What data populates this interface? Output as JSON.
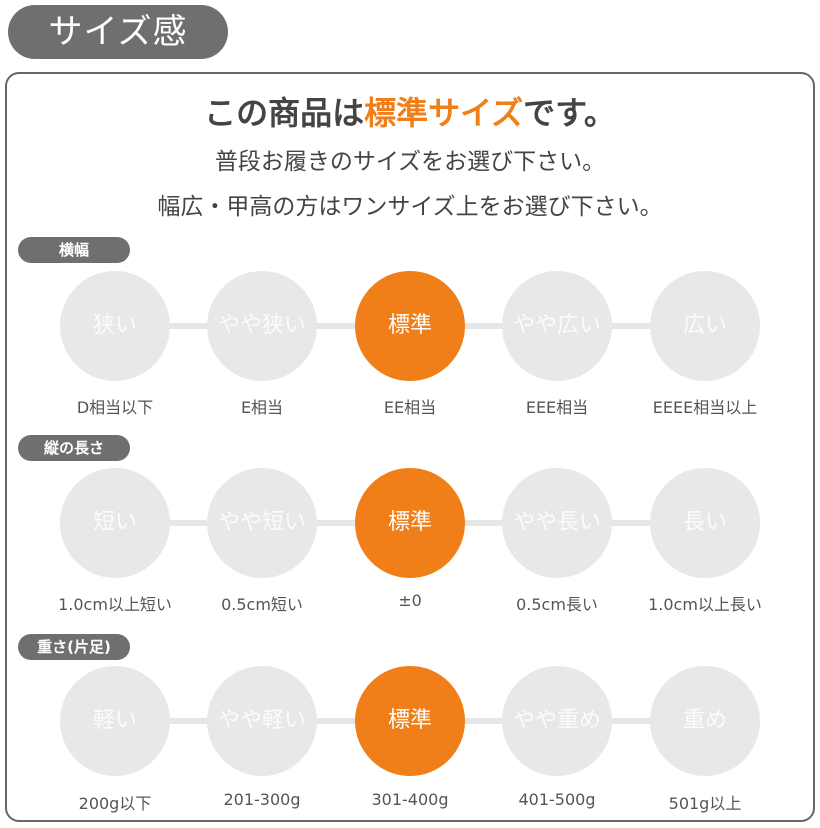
{
  "title": "サイズ感",
  "headline": {
    "prefix": "この商品は",
    "accent": "標準サイズ",
    "suffix": "です。"
  },
  "line2": "普段お履きのサイズをお選び下さい。",
  "line3": "幅広・甲高の方はワンサイズ上をお選び下さい。",
  "colors": {
    "accent": "#f07f1a",
    "inactive": "#e8e8e8",
    "label_bg": "#6f6f6f"
  },
  "sections": [
    {
      "label": "横幅",
      "selected_index": 2,
      "options": [
        "狭い",
        "やや狭い",
        "標準",
        "やや広い",
        "広い"
      ],
      "captions": [
        "D相当以下",
        "E相当",
        "EE相当",
        "EEE相当",
        "EEEE相当以上"
      ]
    },
    {
      "label": "縦の長さ",
      "selected_index": 2,
      "options": [
        "短い",
        "やや短い",
        "標準",
        "やや長い",
        "長い"
      ],
      "captions": [
        "1.0cm以上短い",
        "0.5cm短い",
        "±0",
        "0.5cm長い",
        "1.0cm以上長い"
      ]
    },
    {
      "label": "重さ(片足)",
      "selected_index": 2,
      "options": [
        "軽い",
        "やや軽い",
        "標準",
        "やや重め",
        "重め"
      ],
      "captions": [
        "200g以下",
        "201-300g",
        "301-400g",
        "401-500g",
        "501g以上"
      ]
    }
  ]
}
